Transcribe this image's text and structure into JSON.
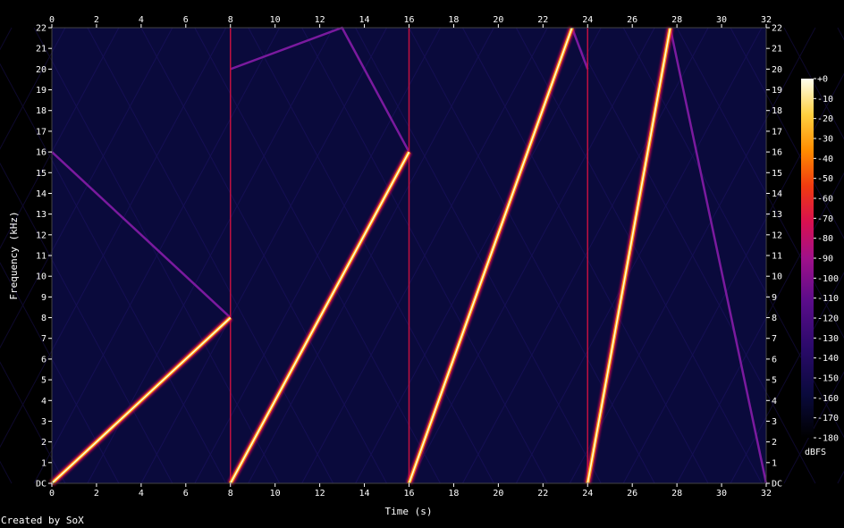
{
  "chart_data": {
    "type": "heatmap",
    "subtype": "spectrogram",
    "xlabel": "Time (s)",
    "ylabel": "Frequency (kHz)",
    "xlim": [
      0,
      32
    ],
    "ylim": [
      0,
      22
    ],
    "x_ticks": [
      "0",
      "2",
      "4",
      "6",
      "8",
      "10",
      "12",
      "14",
      "16",
      "18",
      "20",
      "22",
      "24",
      "26",
      "28",
      "30",
      "32"
    ],
    "y_ticks": [
      "DC",
      "1",
      "2",
      "3",
      "4",
      "5",
      "6",
      "7",
      "8",
      "9",
      "10",
      "11",
      "12",
      "13",
      "14",
      "15",
      "16",
      "17",
      "18",
      "19",
      "20",
      "21",
      "22"
    ],
    "colorbar": {
      "label": "dBFS",
      "range": [
        -180,
        0
      ],
      "ticks": [
        "+0",
        "-10",
        "-20",
        "-30",
        "-40",
        "-50",
        "-60",
        "-70",
        "-80",
        "-90",
        "-100",
        "-110",
        "-120",
        "-130",
        "-140",
        "-150",
        "-160",
        "-170",
        "-180"
      ]
    },
    "segment_boundaries": [
      8,
      16,
      24
    ],
    "series": [
      {
        "role": "primary",
        "points": [
          {
            "t": 0,
            "f": 0
          },
          {
            "t": 8,
            "f": 8
          }
        ]
      },
      {
        "role": "primary",
        "points": [
          {
            "t": 8,
            "f": 0
          },
          {
            "t": 16,
            "f": 16
          }
        ]
      },
      {
        "role": "primary",
        "points": [
          {
            "t": 16,
            "f": 0
          },
          {
            "t": 23.3,
            "f": 22
          }
        ]
      },
      {
        "role": "primary",
        "points": [
          {
            "t": 24,
            "f": 0
          },
          {
            "t": 27.7,
            "f": 22
          }
        ]
      },
      {
        "role": "alias",
        "points": [
          {
            "t": 0,
            "f": 16
          },
          {
            "t": 8,
            "f": 8
          }
        ]
      },
      {
        "role": "alias",
        "points": [
          {
            "t": 8,
            "f": 20
          },
          {
            "t": 13,
            "f": 22
          },
          {
            "t": 16,
            "f": 16
          }
        ]
      },
      {
        "role": "alias",
        "points": [
          {
            "t": 23.3,
            "f": 22
          },
          {
            "t": 24,
            "f": 20
          }
        ]
      },
      {
        "role": "alias",
        "points": [
          {
            "t": 27.7,
            "f": 22
          },
          {
            "t": 32,
            "f": 0
          }
        ]
      }
    ],
    "colors": {
      "background": "#000000",
      "noise_floor": "#0a0a3c",
      "alias": "#7a1a9e",
      "boundary": "#c01040",
      "peak": "#ffffcc"
    }
  },
  "credit": "Created by SoX"
}
